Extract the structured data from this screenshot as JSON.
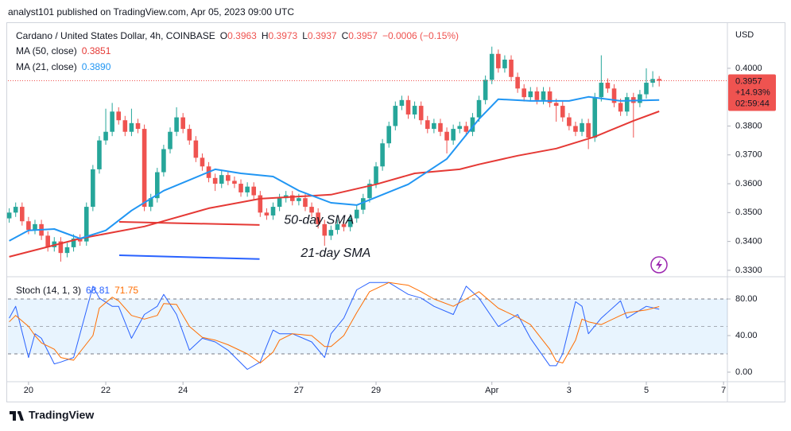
{
  "chart_data": {
    "type": "candlestick",
    "published": "analyst101 published on TradingView.com, Apr 05, 2023 09:00 UTC",
    "title": "Cardano / United States Dollar, 4h, COINBASE",
    "ohlc_letters": [
      "O",
      "H",
      "L",
      "C"
    ],
    "change": "−0.0006 (−0.15%)",
    "currency": "USD",
    "price_change": "+14.93%",
    "countdown": "02:59:44",
    "brand": "TradingView",
    "up_color": "#26a69a",
    "down_color": "#ef5350",
    "open": [
      0.348,
      0.35,
      0.352,
      0.347,
      0.344,
      0.346,
      0.342,
      0.338,
      0.34,
      0.336,
      0.338,
      0.341,
      0.34,
      0.352,
      0.365,
      0.375,
      0.378,
      0.385,
      0.382,
      0.378,
      0.381,
      0.379,
      0.352,
      0.355,
      0.364,
      0.372,
      0.378,
      0.383,
      0.379,
      0.375,
      0.369,
      0.366,
      0.362,
      0.36,
      0.363,
      0.361,
      0.36,
      0.357,
      0.359,
      0.356,
      0.35,
      0.349,
      0.352,
      0.355,
      0.356,
      0.354,
      0.355,
      0.352,
      0.35,
      0.346,
      0.342,
      0.344,
      0.346,
      0.345,
      0.348,
      0.351,
      0.355,
      0.36,
      0.366,
      0.374,
      0.38,
      0.387,
      0.389,
      0.384,
      0.387,
      0.382,
      0.379,
      0.381,
      0.378,
      0.375,
      0.379,
      0.38,
      0.378,
      0.383,
      0.389,
      0.396,
      0.405,
      0.4,
      0.403,
      0.397,
      0.393,
      0.39,
      0.392,
      0.389,
      0.392,
      0.388,
      0.387,
      0.383,
      0.38,
      0.378,
      0.381,
      0.376,
      0.39,
      0.395,
      0.393,
      0.388,
      0.385,
      0.39,
      0.388,
      0.391,
      0.395,
      0.3963
    ],
    "high": [
      0.3515,
      0.3535,
      0.3535,
      0.3485,
      0.3475,
      0.3475,
      0.3435,
      0.3415,
      0.3415,
      0.3395,
      0.3425,
      0.3425,
      0.3535,
      0.3665,
      0.3765,
      0.386,
      0.388,
      0.3865,
      0.3835,
      0.386,
      0.3825,
      0.3805,
      0.3565,
      0.3655,
      0.3735,
      0.3795,
      0.3865,
      0.3845,
      0.3805,
      0.3765,
      0.3705,
      0.3675,
      0.3635,
      0.3645,
      0.3645,
      0.3625,
      0.3615,
      0.3605,
      0.3605,
      0.3575,
      0.3515,
      0.3535,
      0.3565,
      0.3575,
      0.3575,
      0.3565,
      0.3565,
      0.3535,
      0.3515,
      0.3475,
      0.3455,
      0.3475,
      0.3475,
      0.3495,
      0.3525,
      0.3565,
      0.3615,
      0.3675,
      0.3755,
      0.3815,
      0.3885,
      0.3905,
      0.3905,
      0.3885,
      0.3885,
      0.3835,
      0.3825,
      0.3825,
      0.3795,
      0.3805,
      0.3815,
      0.3815,
      0.3845,
      0.3905,
      0.3975,
      0.4075,
      0.4065,
      0.4045,
      0.4045,
      0.3985,
      0.3945,
      0.3935,
      0.3935,
      0.3935,
      0.3935,
      0.3895,
      0.3885,
      0.3845,
      0.3815,
      0.3825,
      0.3825,
      0.3915,
      0.4045,
      0.3965,
      0.3945,
      0.3895,
      0.3915,
      0.3915,
      0.3925,
      0.4,
      0.399,
      0.3973
    ],
    "low": [
      0.3465,
      0.3485,
      0.3455,
      0.3425,
      0.3425,
      0.3405,
      0.3365,
      0.3365,
      0.333,
      0.3345,
      0.3365,
      0.3385,
      0.3385,
      0.3505,
      0.3635,
      0.3735,
      0.3765,
      0.3805,
      0.3765,
      0.3765,
      0.3775,
      0.3505,
      0.3505,
      0.3535,
      0.3625,
      0.3705,
      0.3765,
      0.3775,
      0.3735,
      0.3675,
      0.3645,
      0.3605,
      0.3575,
      0.3585,
      0.3595,
      0.3585,
      0.3555,
      0.3555,
      0.3545,
      0.3485,
      0.3475,
      0.3475,
      0.3505,
      0.3535,
      0.3525,
      0.3525,
      0.3505,
      0.3485,
      0.3445,
      0.3385,
      0.3405,
      0.3425,
      0.3435,
      0.3435,
      0.3465,
      0.3495,
      0.3535,
      0.3585,
      0.3645,
      0.3725,
      0.3785,
      0.3855,
      0.3825,
      0.3825,
      0.3805,
      0.3775,
      0.3775,
      0.3765,
      0.3705,
      0.3735,
      0.3775,
      0.3765,
      0.3765,
      0.3815,
      0.3875,
      0.3945,
      0.3985,
      0.3985,
      0.3955,
      0.3915,
      0.3885,
      0.3885,
      0.3875,
      0.3875,
      0.3865,
      0.3815,
      0.3815,
      0.3785,
      0.3765,
      0.3765,
      0.372,
      0.3745,
      0.3885,
      0.3915,
      0.3865,
      0.3835,
      0.3835,
      0.376,
      0.3865,
      0.3895,
      0.3935,
      0.3937
    ],
    "close": [
      0.35,
      0.352,
      0.347,
      0.344,
      0.346,
      0.342,
      0.338,
      0.34,
      0.336,
      0.338,
      0.341,
      0.34,
      0.352,
      0.365,
      0.375,
      0.378,
      0.385,
      0.382,
      0.378,
      0.381,
      0.379,
      0.352,
      0.355,
      0.364,
      0.372,
      0.378,
      0.383,
      0.379,
      0.375,
      0.369,
      0.366,
      0.362,
      0.36,
      0.363,
      0.361,
      0.36,
      0.357,
      0.359,
      0.356,
      0.35,
      0.349,
      0.352,
      0.355,
      0.356,
      0.354,
      0.355,
      0.352,
      0.35,
      0.346,
      0.342,
      0.344,
      0.346,
      0.345,
      0.348,
      0.351,
      0.355,
      0.36,
      0.366,
      0.374,
      0.38,
      0.387,
      0.389,
      0.384,
      0.387,
      0.382,
      0.379,
      0.381,
      0.378,
      0.375,
      0.379,
      0.38,
      0.378,
      0.383,
      0.389,
      0.396,
      0.405,
      0.4,
      0.403,
      0.397,
      0.393,
      0.39,
      0.392,
      0.389,
      0.392,
      0.388,
      0.387,
      0.383,
      0.38,
      0.378,
      0.381,
      0.376,
      0.39,
      0.395,
      0.393,
      0.388,
      0.385,
      0.39,
      0.388,
      0.391,
      0.395,
      0.3963,
      0.3957
    ],
    "xlim": [
      -0.2,
      111.6
    ],
    "xticks": [
      {
        "value": 3,
        "label": "20"
      },
      {
        "value": 15,
        "label": "22"
      },
      {
        "value": 27,
        "label": "24"
      },
      {
        "value": 45,
        "label": "27"
      },
      {
        "value": 57,
        "label": "29"
      },
      {
        "value": 75,
        "label": "Apr"
      },
      {
        "value": 87,
        "label": "3"
      },
      {
        "value": 99,
        "label": "5"
      },
      {
        "value": 111,
        "label": "7"
      }
    ],
    "ylim": [
      0.3286,
      0.4154
    ],
    "yticks": [
      {
        "value": 0.33,
        "label": "0.3300"
      },
      {
        "value": 0.34,
        "label": "0.3400"
      },
      {
        "value": 0.35,
        "label": "0.3500"
      },
      {
        "value": 0.36,
        "label": "0.3600"
      },
      {
        "value": 0.37,
        "label": "0.3700"
      },
      {
        "value": 0.38,
        "label": "0.3800"
      },
      {
        "value": 0.4,
        "label": "0.4000"
      }
    ],
    "series": [
      {
        "name": "MA (50, close)",
        "color": "#e53935",
        "x": [
          0,
          11,
          21,
          31,
          39,
          50,
          57,
          63,
          70,
          73,
          79,
          85,
          91,
          97,
          101
        ],
        "values": [
          0.3347,
          0.341,
          0.3452,
          0.3515,
          0.3548,
          0.3562,
          0.3598,
          0.3636,
          0.365,
          0.3667,
          0.3697,
          0.3722,
          0.3763,
          0.3818,
          0.3851
        ]
      },
      {
        "name": "MA (21, close)",
        "color": "#2196f3",
        "last_label": "0.3890",
        "x": [
          0,
          3,
          7,
          11,
          15,
          19,
          24,
          32,
          36,
          41,
          45,
          50,
          54,
          58,
          62,
          68,
          73,
          76,
          81,
          87,
          90,
          95,
          101
        ],
        "values": [
          0.3402,
          0.3438,
          0.3443,
          0.341,
          0.3438,
          0.3507,
          0.3576,
          0.365,
          0.3636,
          0.3625,
          0.3576,
          0.3534,
          0.3526,
          0.3562,
          0.3598,
          0.3686,
          0.3824,
          0.3893,
          0.3887,
          0.3887,
          0.3901,
          0.3887,
          0.389
        ]
      }
    ],
    "drawings": [
      {
        "color": "#e53935",
        "x": [
          17.1,
          38.9
        ],
        "values": [
          0.3468,
          0.3457
        ]
      },
      {
        "color": "#2962ff",
        "x": [
          17.1,
          38.9
        ],
        "values": [
          0.3352,
          0.3339
        ]
      }
    ],
    "annotations": [
      {
        "text": "50-day SMA",
        "x": 42.7,
        "value": 0.3473,
        "color": "#e53935"
      },
      {
        "text": "21-day SMA",
        "x": 45.3,
        "value": 0.3358,
        "color": "#2962ff"
      }
    ],
    "stoch": {
      "name": "Stoch (14, 1, 3)",
      "ylim": [
        -8.7,
        102.6
      ],
      "yticks": [
        {
          "value": 0,
          "label": "0.00"
        },
        {
          "value": 40,
          "label": "40.00"
        },
        {
          "value": 80,
          "label": "80.00"
        }
      ],
      "band": [
        20,
        80
      ],
      "midline": 50,
      "series": [
        {
          "color": "#2962ff",
          "x": [
            0,
            1,
            3,
            4,
            5,
            7,
            8,
            10,
            13,
            14,
            16,
            17,
            19,
            21,
            23,
            24,
            26,
            28,
            30,
            32,
            34,
            37,
            39,
            41,
            42,
            44,
            47,
            49,
            50,
            52,
            54,
            56,
            59,
            62,
            64,
            66,
            69,
            71,
            73,
            76,
            79,
            81,
            84,
            85,
            86,
            88,
            89,
            90,
            92,
            95,
            96,
            99,
            101
          ],
          "values": [
            59,
            72,
            16,
            42,
            37,
            9,
            11,
            16,
            94,
            81,
            72,
            72,
            37,
            63,
            72,
            85,
            63,
            24,
            37,
            33,
            24,
            3,
            11,
            46,
            42,
            42,
            33,
            16,
            42,
            59,
            90,
            98,
            98,
            85,
            81,
            72,
            63,
            94,
            81,
            50,
            63,
            37,
            7,
            7,
            20,
            77,
            72,
            42,
            59,
            78,
            59,
            72,
            68.81
          ]
        },
        {
          "color": "#ff6d00",
          "x": [
            0,
            1,
            3,
            4,
            5,
            7,
            8,
            10,
            13,
            14,
            16,
            17,
            19,
            21,
            23,
            24,
            26,
            28,
            30,
            32,
            34,
            37,
            39,
            41,
            42,
            44,
            47,
            49,
            50,
            52,
            54,
            56,
            59,
            62,
            64,
            66,
            69,
            71,
            73,
            76,
            79,
            81,
            84,
            85,
            86,
            88,
            89,
            90,
            92,
            95,
            96,
            99,
            101
          ],
          "values": [
            55,
            62,
            50,
            40,
            32,
            25,
            16,
            13,
            40,
            70,
            82,
            78,
            62,
            58,
            62,
            75,
            74,
            50,
            38,
            35,
            30,
            20,
            10,
            22,
            35,
            42,
            40,
            28,
            28,
            40,
            65,
            88,
            98,
            95,
            88,
            80,
            72,
            80,
            88,
            70,
            60,
            52,
            25,
            12,
            10,
            35,
            58,
            55,
            52,
            62,
            65,
            68,
            71.75
          ]
        }
      ]
    }
  }
}
